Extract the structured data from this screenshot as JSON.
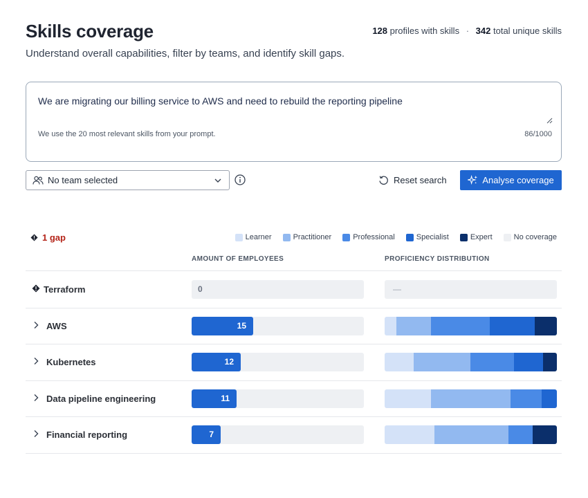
{
  "header": {
    "title": "Skills coverage",
    "profiles_count": "128",
    "profiles_label": "profiles with skills",
    "separator": "·",
    "skills_count": "342",
    "skills_label": "total unique skills",
    "subtitle": "Understand overall capabilities, filter by teams, and identify skill gaps."
  },
  "prompt": {
    "value": "We are migrating our billing service to AWS and need to rebuild the reporting pipeline",
    "hint": "We use the 20 most relevant skills from your prompt.",
    "counter": "86/1000"
  },
  "filters": {
    "team_select_value": "No team selected",
    "reset_label": "Reset search",
    "analyse_label": "Analyse coverage"
  },
  "summary": {
    "gap_label": "1 gap"
  },
  "legend": [
    {
      "label": "Learner",
      "color": "#d4e2f8"
    },
    {
      "label": "Practitioner",
      "color": "#92b9f0"
    },
    {
      "label": "Professional",
      "color": "#4a8ae6"
    },
    {
      "label": "Specialist",
      "color": "#1f66d1"
    },
    {
      "label": "Expert",
      "color": "#0b2f6b"
    },
    {
      "label": "No coverage",
      "color": "#eef0f3"
    }
  ],
  "columns": {
    "employees": "AMOUNT OF EMPLOYEES",
    "distribution": "PROFICIENCY DISTRIBUTION"
  },
  "max_employees": 42,
  "skills": [
    {
      "name": "Terraform",
      "gap": true,
      "employees": "0",
      "empty_dist": "—",
      "distribution": []
    },
    {
      "name": "AWS",
      "gap": false,
      "employees": "15",
      "distribution": [
        0.07,
        0.2,
        0.34,
        0.26,
        0.13
      ]
    },
    {
      "name": "Kubernetes",
      "gap": false,
      "employees": "12",
      "distribution": [
        0.17,
        0.33,
        0.25,
        0.17,
        0.08
      ]
    },
    {
      "name": "Data pipeline engineering",
      "gap": false,
      "employees": "11",
      "distribution": [
        0.27,
        0.46,
        0.18,
        0.09,
        0.0
      ]
    },
    {
      "name": "Financial reporting",
      "gap": false,
      "employees": "7",
      "distribution": [
        0.29,
        0.43,
        0.14,
        0.0,
        0.14
      ]
    }
  ]
}
